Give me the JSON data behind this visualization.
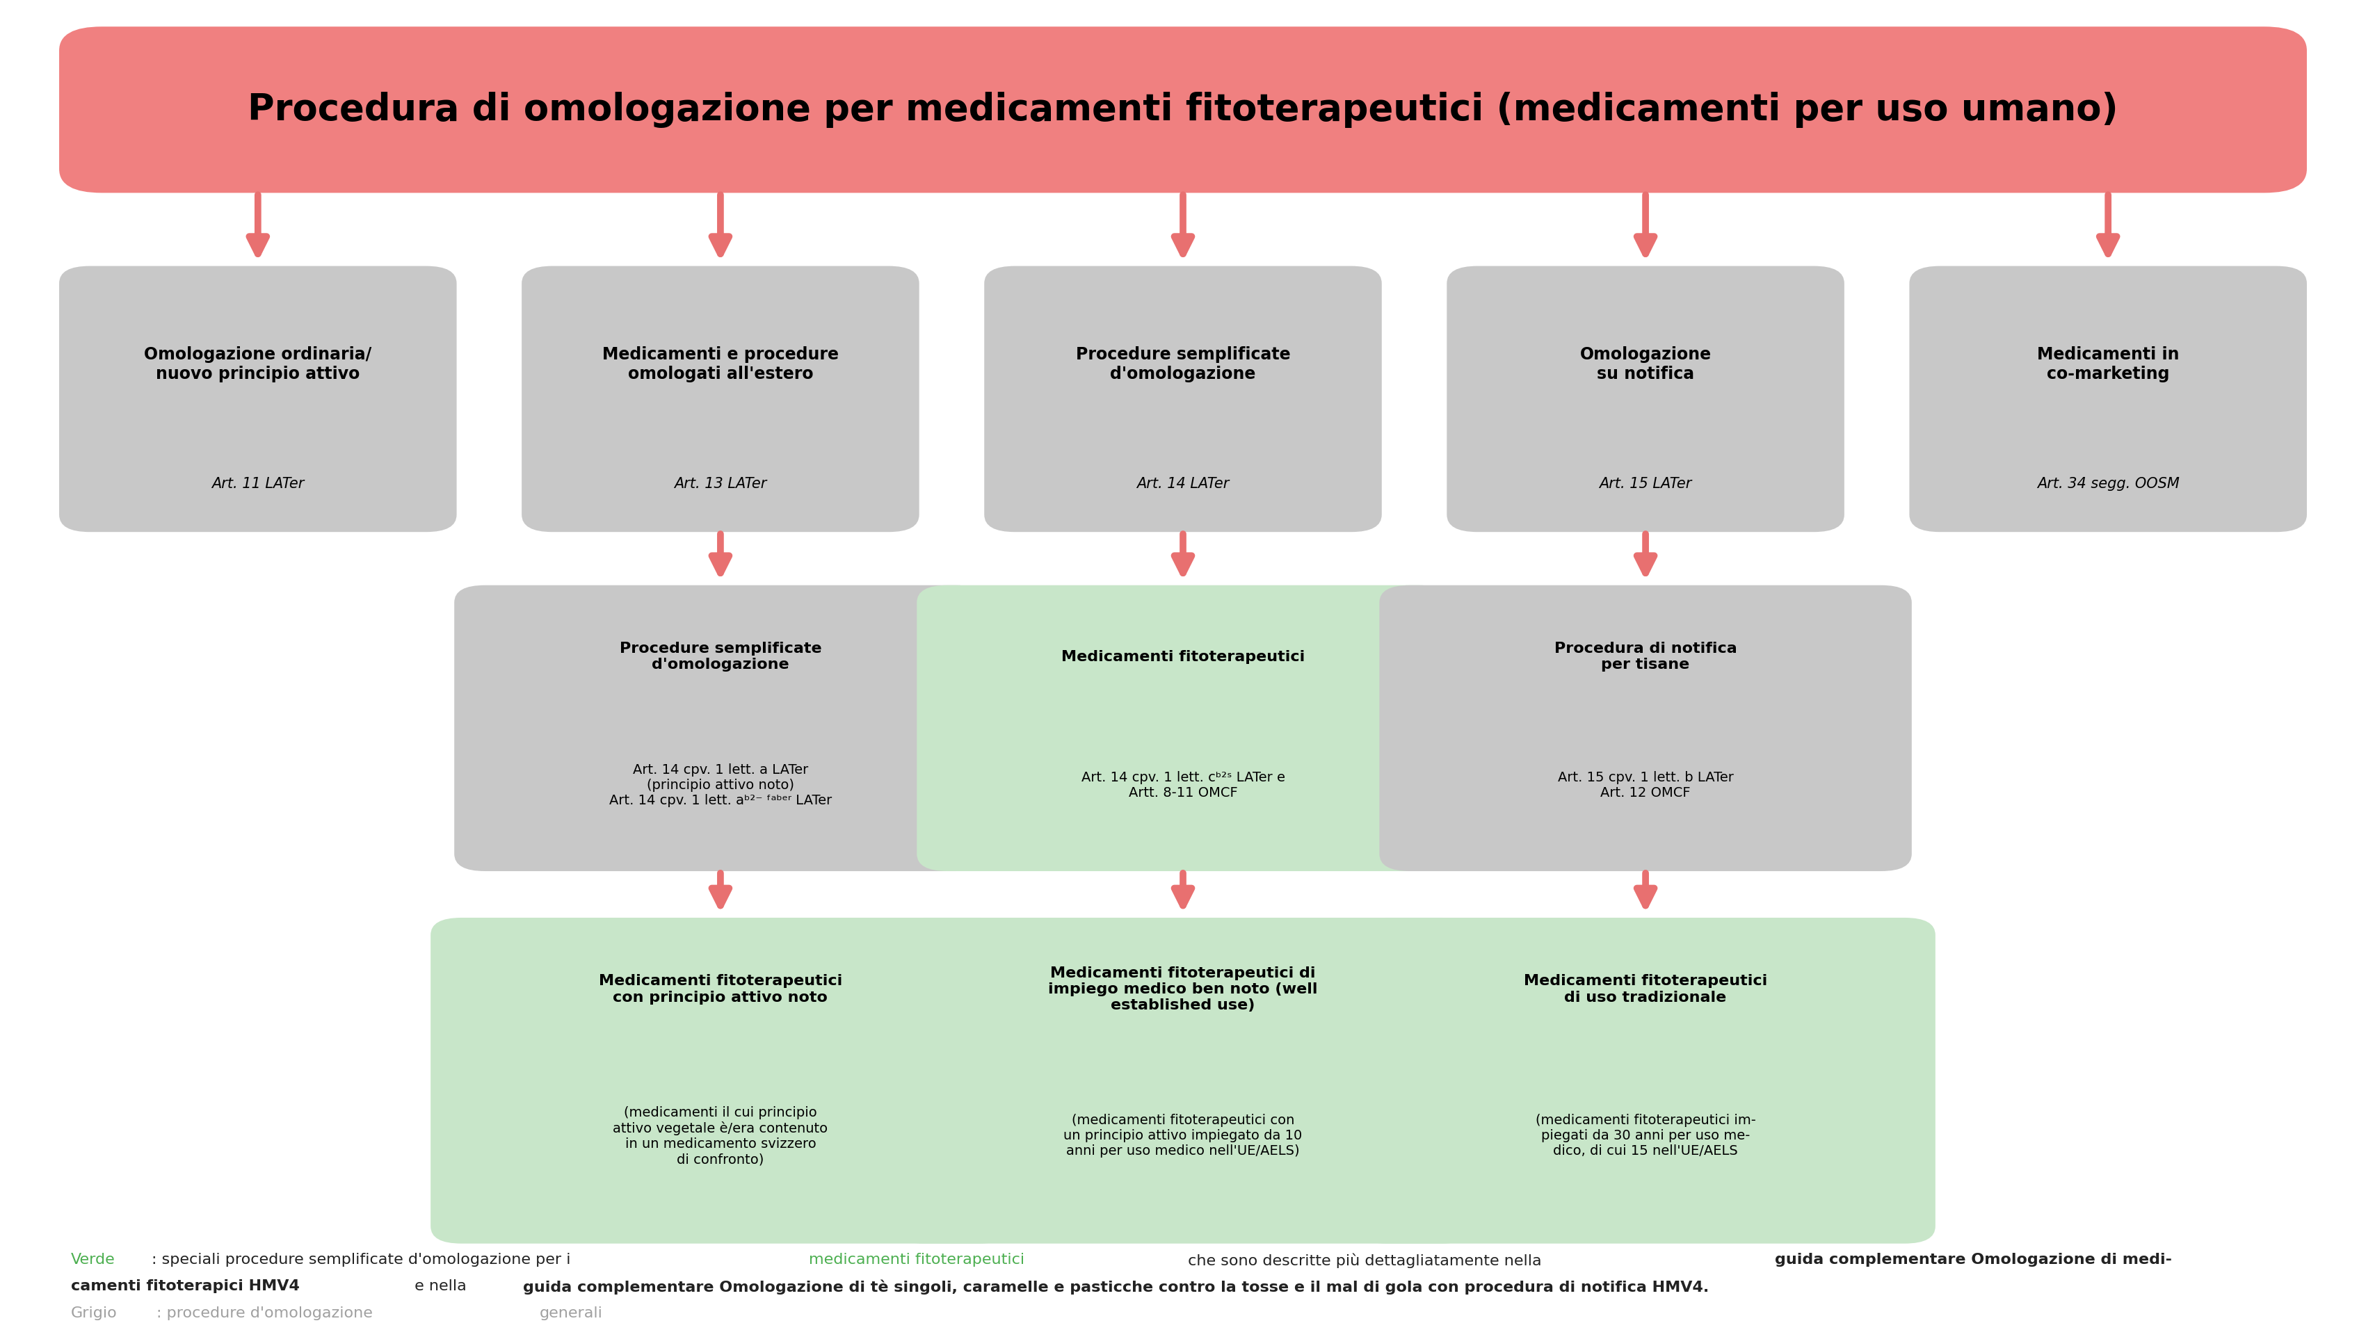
{
  "title": "Procedura di omologazione per medicamenti fitoterapeutici (medicamenti per uso umano)",
  "title_color": "#000000",
  "title_bg": "#F08080",
  "title_fontsize": 38,
  "arrow_color": "#E87070",
  "gray_box_color": "#C8C8C8",
  "green_box_color": "#C8E6C9",
  "bg_color": "#FFFFFF",
  "row1_boxes": [
    {
      "label": "Omologazione ordinaria/\nnuovo principio attivo",
      "sublabel": "Art. 11 LATer",
      "color": "#C8C8C8"
    },
    {
      "label": "Medicamenti e procedure\nomologati all'estero",
      "sublabel": "Art. 13 LATer",
      "color": "#C8C8C8"
    },
    {
      "label": "Procedure semplificate\nd'omologazione",
      "sublabel": "Art. 14 LATer",
      "color": "#C8C8C8"
    },
    {
      "label": "Omologazione\nsu notifica",
      "sublabel": "Art. 15 LATer",
      "color": "#C8C8C8"
    },
    {
      "label": "Medicamenti in\nco-marketing",
      "sublabel": "Art. 34 segg. OOSM",
      "color": "#C8C8C8"
    }
  ],
  "row2_boxes": [
    {
      "label": "Procedure semplificate\nd'omologazione",
      "sublabel": "Art. 14 cpv. 1 lett. a LATer\n(principio attivo noto)\nArt. 14 cpv. 1 lett. aᵇ²⁻ ᶠᵃᵇᵉʳ LATer",
      "color": "#C8C8C8"
    },
    {
      "label": "Medicamenti fitoterapeutici",
      "sublabel": "Art. 14 cpv. 1 lett. cᵇ²ˢ LATer e\nArtt. 8-11 OMCF",
      "color": "#C8E6C9"
    },
    {
      "label": "Procedura di notifica\nper tisane",
      "sublabel": "Art. 15 cpv. 1 lett. b LATer\nArt. 12 OMCF",
      "color": "#C8C8C8"
    }
  ],
  "row3_boxes": [
    {
      "label": "Medicamenti fitoterapeutici\ncon principio attivo noto",
      "sublabel": "(medicamenti il cui principio\nattivo vegetale è/era contenuto\nin un medicamento svizzero\ndi confronto)",
      "color": "#C8E6C9"
    },
    {
      "label": "Medicamenti fitoterapeutici di\nimpiego medico ben noto (well\nestablished use)",
      "sublabel": "(medicamenti fitoterapeutici con\nun principio attivo impiegato da 10\nanni per uso medico nell'UE/AELS)",
      "color": "#C8E6C9"
    },
    {
      "label": "Medicamenti fitoterapeutici\ndi uso tradizionale",
      "sublabel": "(medicamenti fitoterapeutici im-\npiegati da 30 anni per uso me-\ndico, di cui 15 nell'UE/AELS",
      "color": "#C8E6C9"
    }
  ]
}
